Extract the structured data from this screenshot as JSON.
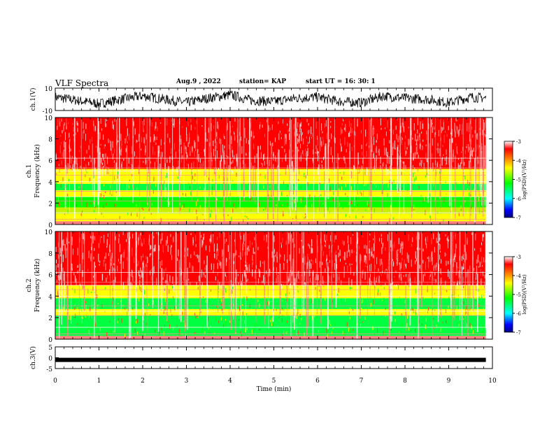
{
  "header": {
    "title": "VLF Spectra",
    "date": "Aug.9  , 2022",
    "station": "station= KAP",
    "start": "start  UT  =   16: 30: 1"
  },
  "chart_data": [
    {
      "type": "line",
      "ylabel": "ch.1(V)",
      "ylim": [
        -10,
        10
      ],
      "yticks": [
        "10",
        "-10"
      ],
      "xlim": [
        0,
        10
      ],
      "color": "#000000",
      "x_min": [
        0,
        0.5,
        1,
        1.5,
        2,
        2.5,
        3,
        3.5,
        4,
        4.5,
        5,
        5.5,
        6,
        6.5,
        7,
        7.5,
        8,
        8.5,
        9,
        9.5,
        9.85
      ],
      "values_v": [
        2,
        -1,
        -4,
        0,
        3,
        0,
        -3,
        1,
        4,
        -1,
        -2,
        1,
        2,
        -2,
        -3,
        3,
        1,
        0,
        -3,
        2,
        1
      ]
    },
    {
      "type": "heatmap",
      "ylabel": "ch.1\nFrequency  (kHz)",
      "ylim": [
        0,
        10
      ],
      "yticks": [
        "10",
        "8",
        "6",
        "4",
        "2",
        "0"
      ],
      "xlim": [
        0,
        10
      ],
      "bands_khz": [
        [
          0.3,
          1.0,
          "#ffff00"
        ],
        [
          1.0,
          1.6,
          "#c8f000"
        ],
        [
          1.6,
          2.6,
          "#00ff00"
        ],
        [
          2.6,
          3.2,
          "#ffff00"
        ],
        [
          3.2,
          3.8,
          "#00ff40"
        ],
        [
          3.8,
          5.2,
          "#ffff00"
        ],
        [
          5.2,
          10,
          "#ff0000"
        ]
      ],
      "colorbar": {
        "label": "log(PSD)(V²/Hz)",
        "ticks": [
          "-3",
          "-4",
          "-5",
          "-6",
          "-7"
        ],
        "range": [
          -7,
          -3
        ]
      }
    },
    {
      "type": "heatmap",
      "ylabel": "ch.2\nFrequency  (kHz)",
      "ylim": [
        0,
        10
      ],
      "yticks": [
        "10",
        "8",
        "6",
        "4",
        "2",
        "0"
      ],
      "xlim": [
        0,
        10
      ],
      "bands_khz": [
        [
          0.3,
          2.2,
          "#00ff40"
        ],
        [
          2.2,
          2.8,
          "#ffff00"
        ],
        [
          2.8,
          3.8,
          "#00ff40"
        ],
        [
          3.8,
          5.0,
          "#ffff00"
        ],
        [
          5.0,
          10,
          "#ff0000"
        ]
      ],
      "colorbar": {
        "label": "log(PSD)(V²/Hz)",
        "ticks": [
          "-3",
          "-4",
          "-5",
          "-6",
          "-7"
        ],
        "range": [
          -7,
          -3
        ]
      }
    },
    {
      "type": "line",
      "ylabel": "ch.3(V)",
      "ylim": [
        -5,
        5
      ],
      "yticks": [
        "5",
        "0",
        "-5"
      ],
      "xlim": [
        0,
        10
      ],
      "xlabel": "Time  (min)",
      "xticks": [
        "0",
        "1",
        "2",
        "3",
        "4",
        "5",
        "6",
        "7",
        "8",
        "9",
        "10"
      ],
      "color": "#000000",
      "x_min": [
        0,
        9.85
      ],
      "values_v": [
        -1,
        -1
      ]
    }
  ]
}
